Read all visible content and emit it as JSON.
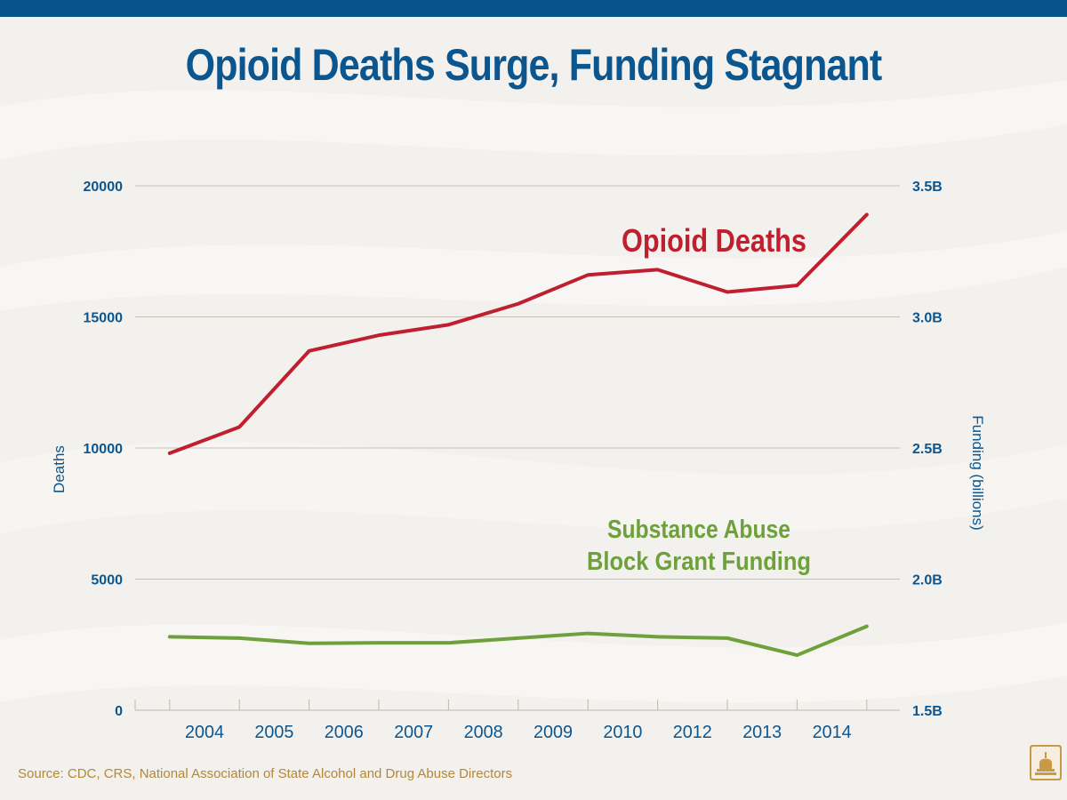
{
  "title": "Opioid Deaths Surge, Funding Stagnant",
  "source": "Source: CDC, CRS, National Association of State Alcohol and Drug Abuse Directors",
  "colors": {
    "header_bar": "#06528b",
    "title": "#0c5690",
    "deaths": "#c01f2f",
    "funding": "#6ea13b",
    "axis_text": "#0c5690",
    "source": "#b2873a"
  },
  "icons": {
    "logo": "capitol-dome-icon"
  },
  "chart_data": {
    "type": "line",
    "categories": [
      "2004",
      "2005",
      "2006",
      "2007",
      "2008",
      "2009",
      "2010",
      "2012",
      "2013",
      "2014"
    ],
    "title": "Opioid Deaths Surge, Funding Stagnant",
    "ylabel": "Deaths",
    "y2label": "Funding (billions)",
    "ylim": [
      0,
      20000
    ],
    "y2lim": [
      1.5,
      3.5
    ],
    "yticks": [
      "0",
      "5000",
      "10000",
      "15000",
      "20000"
    ],
    "y2ticks": [
      "1.5B",
      "2.0B",
      "2.5B",
      "3.0B",
      "3.5B"
    ],
    "grid": true,
    "series": [
      {
        "name": "Opioid Deaths",
        "axis": "left",
        "x": [
          2003.5,
          2004.5,
          2005.5,
          2006.5,
          2007.5,
          2008.5,
          2009.5,
          2010.5,
          2011.5,
          2012.5,
          2013.5
        ],
        "values": [
          9800,
          10800,
          13700,
          14300,
          14700,
          15500,
          16600,
          16800,
          15950,
          16200,
          18900
        ]
      },
      {
        "name": "Substance Abuse Block Grant Funding",
        "label_lines": [
          "Substance Abuse",
          "Block Grant Funding"
        ],
        "axis": "right",
        "x": [
          2003.5,
          2004.5,
          2005.5,
          2006.5,
          2007.5,
          2008.5,
          2009.5,
          2010.5,
          2011.5,
          2012.5,
          2013.5
        ],
        "values": [
          1.78,
          1.775,
          1.755,
          1.757,
          1.757,
          1.775,
          1.793,
          1.78,
          1.775,
          1.71,
          1.82
        ]
      }
    ]
  }
}
